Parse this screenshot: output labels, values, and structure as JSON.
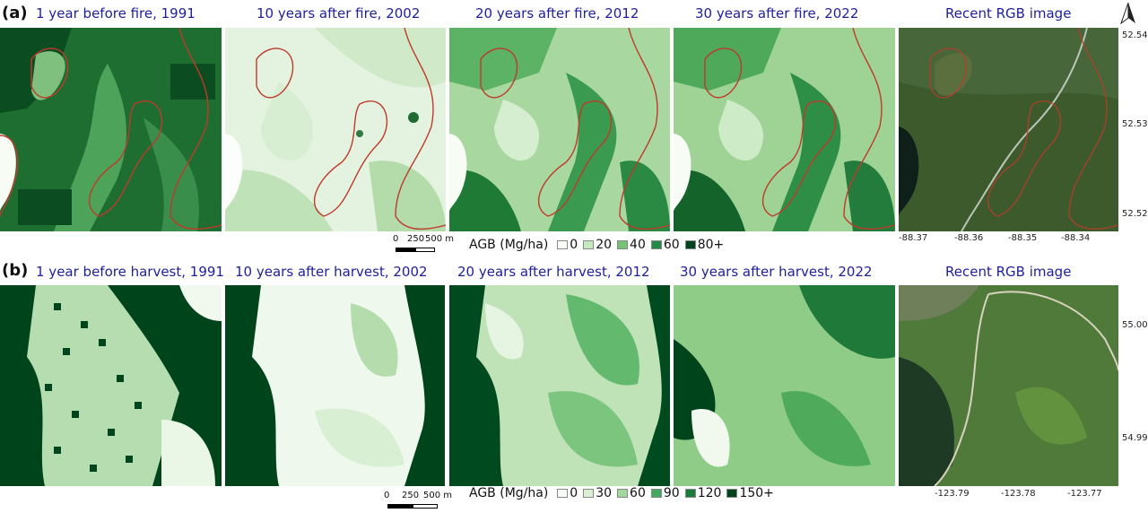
{
  "rows": [
    {
      "label": "(a)",
      "panels": [
        {
          "title": "1 year before fire, 1991",
          "style": "dense"
        },
        {
          "title": "10 years after fire, 2002",
          "style": "light"
        },
        {
          "title": "20 years after fire, 2012",
          "style": "medium"
        },
        {
          "title": "30 years after fire, 2022",
          "style": "medium"
        },
        {
          "title": "Recent RGB image",
          "style": "rgb"
        }
      ],
      "lat_ticks": [
        "52.54",
        "52.53",
        "52.52"
      ],
      "lon_ticks": [
        "-88.37",
        "-88.36",
        "-88.35",
        "-88.34"
      ],
      "scalebar": {
        "labels": [
          "0",
          "250",
          "500 m"
        ]
      },
      "legend": {
        "title": "AGB (Mg/ha)",
        "items": [
          {
            "label": "0",
            "color": "#f7fcf5"
          },
          {
            "label": "20",
            "color": "#c7e9c0"
          },
          {
            "label": "40",
            "color": "#74c476"
          },
          {
            "label": "60",
            "color": "#238b45"
          },
          {
            "label": "80+",
            "color": "#00441b"
          }
        ]
      }
    },
    {
      "label": "(b)",
      "panels": [
        {
          "title": "1 year before harvest, 1991",
          "style": "harvest-before"
        },
        {
          "title": "10 years after harvest, 2002",
          "style": "harvest-light"
        },
        {
          "title": "20 years after harvest, 2012",
          "style": "harvest-medium"
        },
        {
          "title": "30 years after harvest, 2022",
          "style": "harvest-medium"
        },
        {
          "title": "Recent RGB image",
          "style": "rgb2"
        }
      ],
      "lat_ticks": [
        "55.00",
        "54.99"
      ],
      "lon_ticks": [
        "-123.79",
        "-123.78",
        "-123.77"
      ],
      "scalebar": {
        "labels": [
          "0",
          "250",
          "500 m"
        ]
      },
      "legend": {
        "title": "AGB (Mg/ha)",
        "items": [
          {
            "label": "0",
            "color": "#f7fcf5"
          },
          {
            "label": "30",
            "color": "#d9f0d3"
          },
          {
            "label": "60",
            "color": "#a1d99b"
          },
          {
            "label": "90",
            "color": "#41ab5d"
          },
          {
            "label": "120",
            "color": "#1a7a3a"
          },
          {
            "label": "150+",
            "color": "#00441b"
          }
        ]
      }
    }
  ],
  "north_arrow": {
    "icon": "north-arrow-icon",
    "label": "N"
  }
}
